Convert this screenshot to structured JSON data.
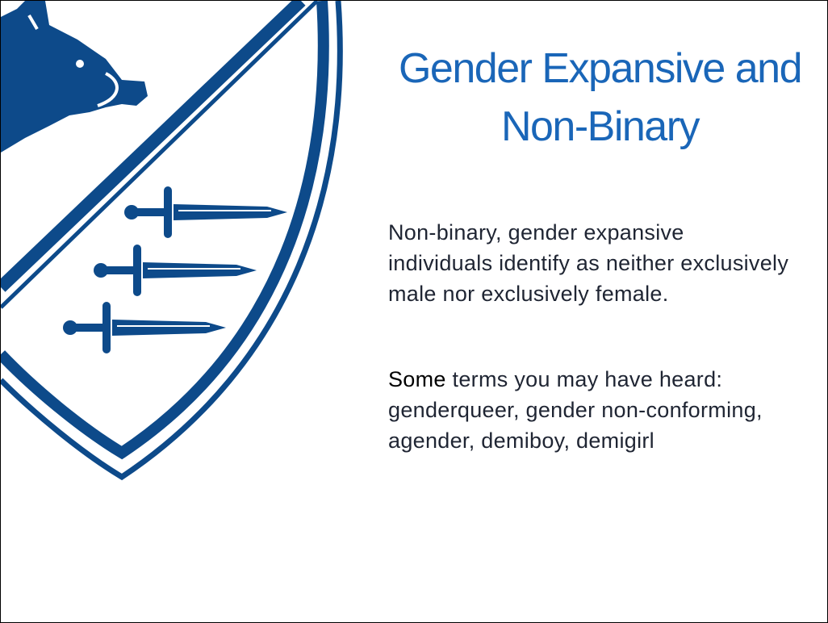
{
  "slide": {
    "title": "Gender Expansive and Non-Binary",
    "paragraphs": [
      {
        "text": "Non-binary, gender expansive individuals identify as neither exclusively male nor exclusively female."
      },
      {
        "emphasis": "Some",
        "text": "terms you may have heard: genderqueer, gender non-conforming, agender, demiboy, demigirl"
      }
    ]
  }
}
